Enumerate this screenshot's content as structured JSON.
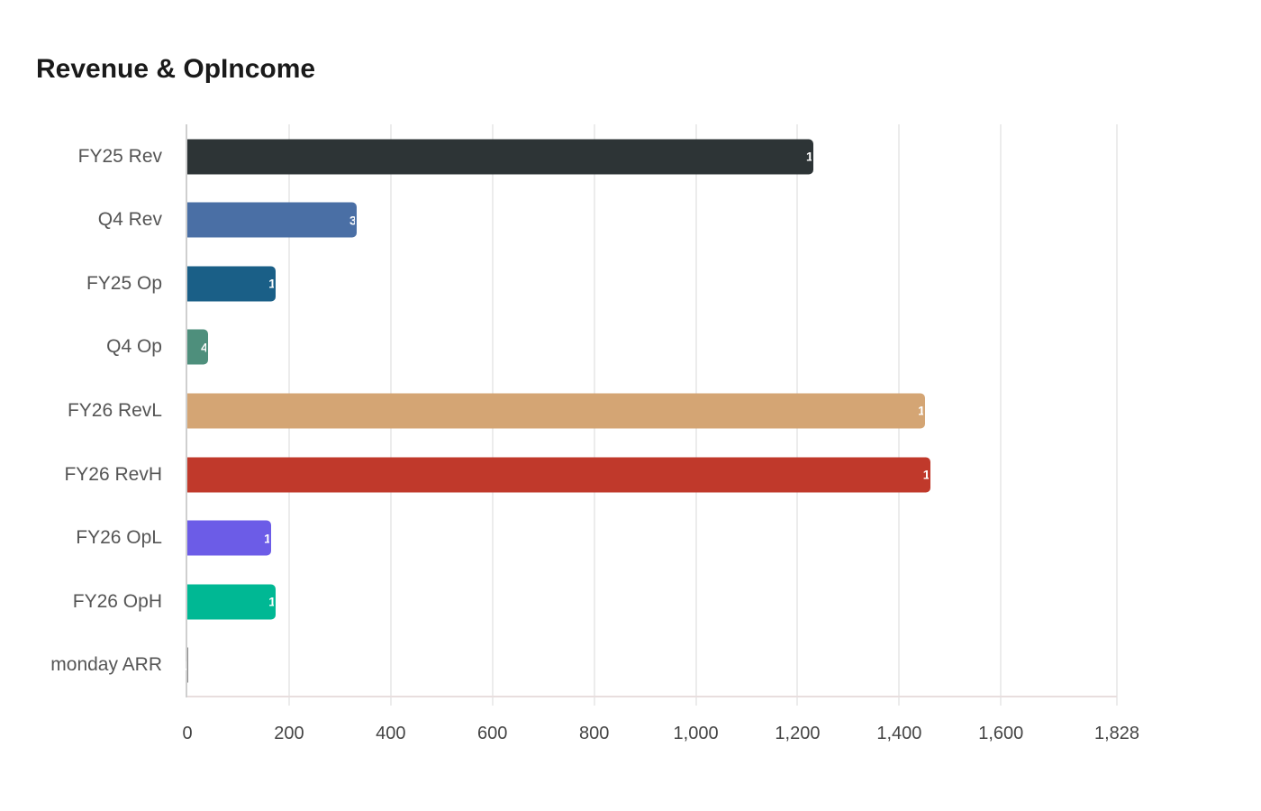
{
  "chart_data": {
    "type": "bar",
    "orientation": "horizontal",
    "title": "Revenue & OpIncome",
    "xlabel": "",
    "ylabel": "",
    "categories": [
      "FY25 Rev",
      "Q4 Rev",
      "FY25 Op",
      "Q4 Op",
      "FY26 RevL",
      "FY26 RevH",
      "FY26 OpL",
      "FY26 OpH",
      "monday ARR"
    ],
    "values": [
      1231,
      333,
      174,
      41,
      1451,
      1461,
      165,
      174,
      1
    ],
    "colors": [
      "#2d3436",
      "#4a6fa5",
      "#1a5f87",
      "#4e8f7c",
      "#d4a574",
      "#c0392b",
      "#6c5ce7",
      "#00b894",
      "#888888"
    ],
    "xlim": [
      0,
      1828
    ],
    "xticks": [
      "0",
      "200",
      "400",
      "600",
      "800",
      "1,000",
      "1,200",
      "1,400",
      "1,600",
      "1,828"
    ],
    "xtick_values": [
      0,
      200,
      400,
      600,
      800,
      1000,
      1200,
      1400,
      1600,
      1828
    ],
    "grid": true,
    "legend": "none"
  }
}
